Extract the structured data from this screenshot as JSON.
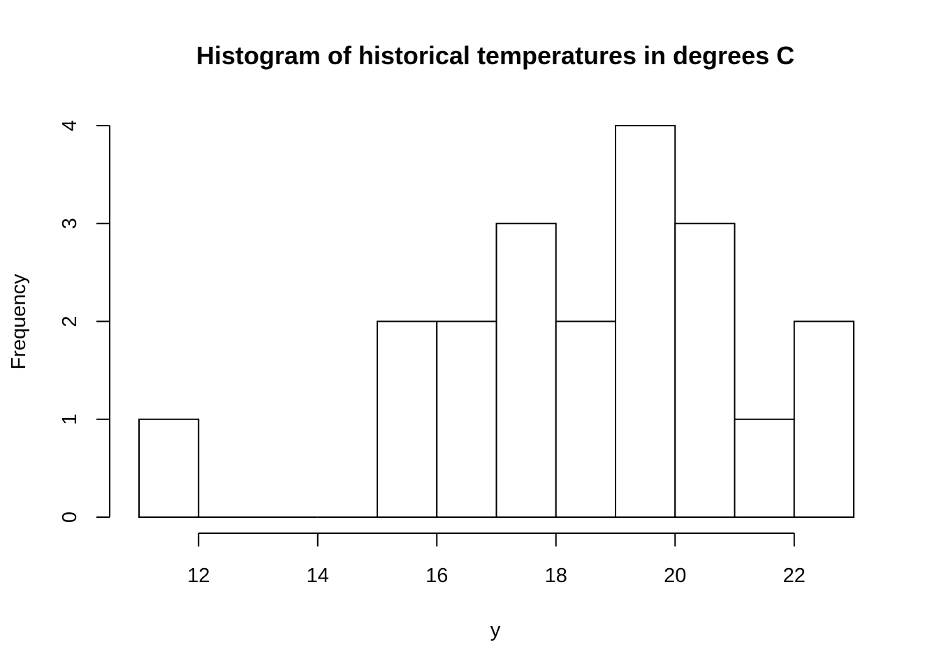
{
  "chart_data": {
    "type": "bar",
    "title": "Histogram of historical temperatures in degrees C",
    "xlabel": "y",
    "ylabel": "Frequency",
    "bins": [
      {
        "start": 11,
        "end": 12,
        "count": 1
      },
      {
        "start": 12,
        "end": 13,
        "count": 0
      },
      {
        "start": 13,
        "end": 14,
        "count": 0
      },
      {
        "start": 14,
        "end": 15,
        "count": 0
      },
      {
        "start": 15,
        "end": 16,
        "count": 2
      },
      {
        "start": 16,
        "end": 17,
        "count": 2
      },
      {
        "start": 17,
        "end": 18,
        "count": 3
      },
      {
        "start": 18,
        "end": 19,
        "count": 2
      },
      {
        "start": 19,
        "end": 20,
        "count": 4
      },
      {
        "start": 20,
        "end": 21,
        "count": 3
      },
      {
        "start": 21,
        "end": 22,
        "count": 1
      },
      {
        "start": 22,
        "end": 23,
        "count": 2
      }
    ],
    "xticks": [
      12,
      14,
      16,
      18,
      20,
      22
    ],
    "yticks": [
      0,
      1,
      2,
      3,
      4
    ],
    "xlim": [
      11,
      23
    ],
    "ylim": [
      0,
      4
    ],
    "grid": false,
    "legend": "none"
  }
}
